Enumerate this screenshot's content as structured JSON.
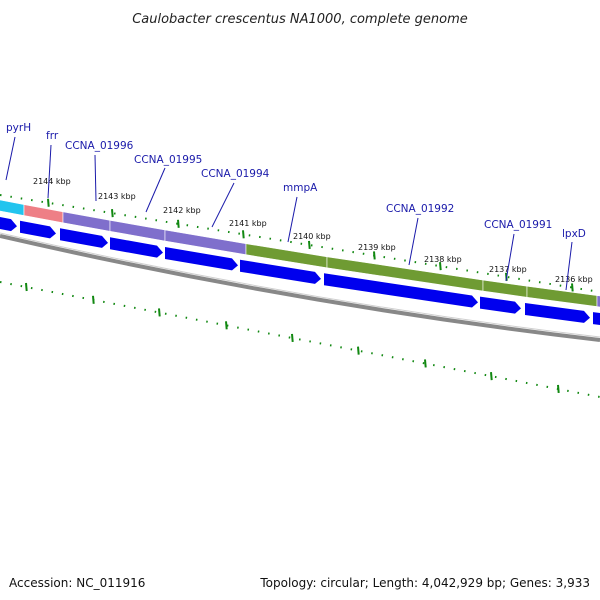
{
  "title": "Caulobacter crescentus NA1000, complete genome",
  "footer": {
    "accession": "Accession: NC_011916",
    "stats": "Topology: circular; Length: 4,042,929 bp; Genes: 3,933"
  },
  "colors": {
    "cds_arrow": "#0000ee",
    "backbone": "#777777",
    "tick": "#118811",
    "gene_label": "#1a1aaa",
    "label_line": "#1a1aaa"
  },
  "genes": [
    {
      "name": "pyrH",
      "color": "#22c4ee"
    },
    {
      "name": "frr",
      "color": "#ee7f86"
    },
    {
      "name": "CCNA_01996",
      "color": "#7f6fcc"
    },
    {
      "name": "CCNA_01995",
      "color": "#7f6fcc"
    },
    {
      "name": "CCNA_01994",
      "color": "#7f6fcc"
    },
    {
      "name": "mmpA",
      "color": "#6f9b33"
    },
    {
      "name": "CCNA_01992",
      "color": "#6f9b33"
    },
    {
      "name": "CCNA_01991",
      "color": "#6f9b33"
    },
    {
      "name": "lpxD",
      "color": "#6f9b33"
    }
  ],
  "tick_labels": [
    "2144 kbp",
    "2143 kbp",
    "2142 kbp",
    "2141 kbp",
    "2140 kbp",
    "2139 kbp",
    "2138 kbp",
    "2137 kbp",
    "2136 kbp"
  ]
}
